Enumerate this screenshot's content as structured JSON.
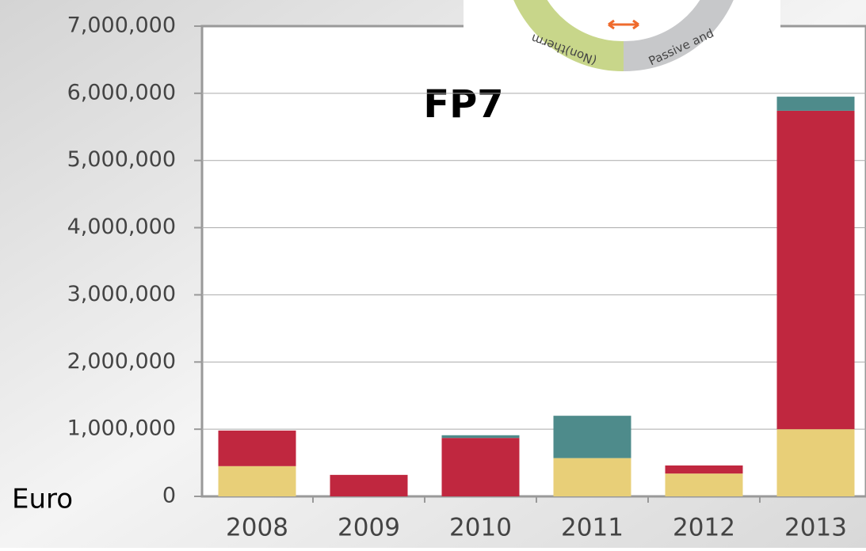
{
  "chart_data": {
    "type": "stacked_bar",
    "title": "FP7",
    "y_label": "Euro",
    "categories": [
      "2008",
      "2009",
      "2010",
      "2011",
      "2012",
      "2013"
    ],
    "series": [
      {
        "color": "#e8cf78",
        "values": [
          450000,
          0,
          0,
          570000,
          340000,
          1000000
        ]
      },
      {
        "color": "#c0273f",
        "values": [
          530000,
          320000,
          870000,
          0,
          120000,
          4740000
        ]
      },
      {
        "color": "#4e8b8b",
        "values": [
          0,
          0,
          40000,
          630000,
          0,
          210000
        ]
      }
    ],
    "ylim": [
      0,
      7000000
    ],
    "yticks": [
      0,
      {
        "value": 1000000,
        "label": "1,000,000"
      },
      {
        "value": 2000000,
        "label": "2,000,000"
      },
      {
        "value": 3000000,
        "label": "3,000,000"
      },
      {
        "value": 4000000,
        "label": "4,000,000"
      },
      {
        "value": 5000000,
        "label": "5,000,000"
      },
      {
        "value": 6000000,
        "label": "6,000,000"
      },
      {
        "value": 7000000,
        "label": "7,000,000"
      }
    ],
    "grid": true
  },
  "diagram": {
    "labels": [
      "(Non)therm",
      "Passive and"
    ]
  }
}
